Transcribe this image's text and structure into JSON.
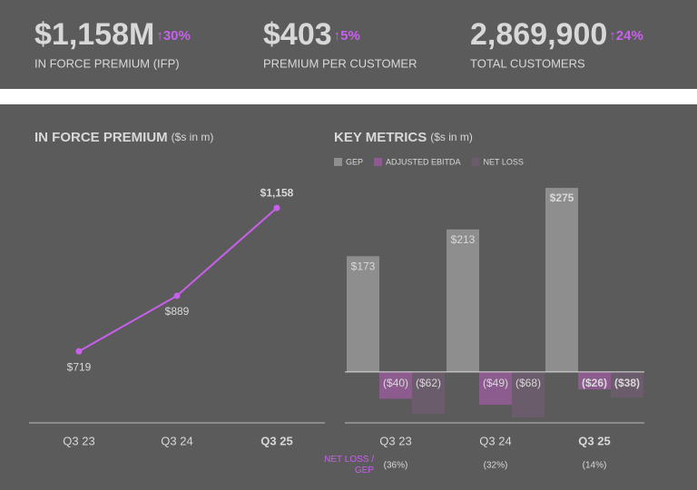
{
  "kpis": [
    {
      "value": "$1,158M",
      "change": "↑30%",
      "label": "IN FORCE PREMIUM (IFP)"
    },
    {
      "value": "$403",
      "change": "↑5%",
      "label": "PREMIUM PER CUSTOMER"
    },
    {
      "value": "2,869,900",
      "change": "↑24%",
      "label": "TOTAL CUSTOMERS"
    }
  ],
  "chart_data": [
    {
      "type": "line",
      "title": "IN FORCE PREMIUM",
      "subtitle": "($s in m)",
      "categories": [
        "Q3 23",
        "Q3 24",
        "Q3 25"
      ],
      "values": [
        719,
        889,
        1158
      ],
      "value_labels": [
        "$719",
        "$889",
        "$1,158"
      ],
      "color": "#c860ec",
      "ylim": [
        500,
        1250
      ],
      "highlight_index": 2
    },
    {
      "type": "bar",
      "title": "KEY METRICS",
      "subtitle": "($s in m)",
      "categories": [
        "Q3 23",
        "Q3 24",
        "Q3 25"
      ],
      "series": [
        {
          "name": "GEP",
          "color": "#8e8e8e",
          "values": [
            173,
            213,
            275
          ],
          "value_labels": [
            "$173",
            "$213",
            "$275"
          ]
        },
        {
          "name": "ADJUSTED EBITDA",
          "color": "#8c5c8e",
          "values": [
            -40,
            -49,
            -26
          ],
          "value_labels": [
            "($40)",
            "($49)",
            "($26)"
          ]
        },
        {
          "name": "NET LOSS",
          "color": "#6b5c6b",
          "values": [
            -62,
            -68,
            -38
          ],
          "value_labels": [
            "($62)",
            "($68)",
            "($38)"
          ]
        }
      ],
      "ylim": [
        -76,
        290
      ],
      "highlight_index": 2,
      "ratio_label": "NET LOSS / GEP",
      "ratio_labels": [
        "(36%)",
        "(32%)",
        "(14%)"
      ]
    }
  ]
}
